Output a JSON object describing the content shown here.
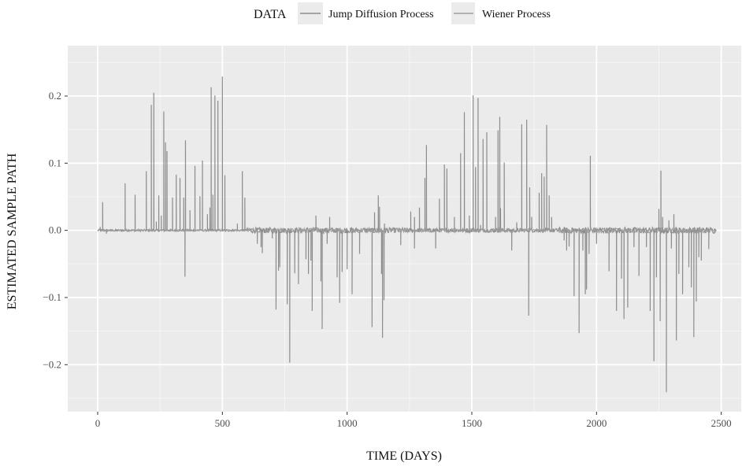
{
  "chart_data": {
    "type": "line",
    "xlabel": "TIME (DAYS)",
    "ylabel": "ESTIMATED SAMPLE PATH",
    "xlim": [
      -120,
      2580
    ],
    "ylim": [
      -0.27,
      0.275
    ],
    "xticks": [
      0,
      500,
      1000,
      1500,
      2000,
      2500
    ],
    "xtick_labels": [
      "0",
      "500",
      "1000",
      "1500",
      "2000",
      "2500"
    ],
    "yticks": [
      -0.2,
      -0.1,
      0.0,
      0.1,
      0.2
    ],
    "ytick_labels": [
      "−0.2",
      "−0.1",
      "0.0",
      "0.1",
      "0.2"
    ],
    "grid": true,
    "legend": {
      "title": "DATA",
      "position": "top",
      "entries": [
        "Jump Diffusion Process",
        "Wiener Process"
      ]
    },
    "series_colors": [
      "#8c8c8c",
      "#9e9e9e"
    ],
    "spikes": [
      [
        10,
        0.005
      ],
      [
        20,
        0.042
      ],
      [
        35,
        -0.005
      ],
      [
        110,
        0.07
      ],
      [
        150,
        0.053
      ],
      [
        195,
        0.088
      ],
      [
        215,
        0.187
      ],
      [
        225,
        0.205
      ],
      [
        235,
        0.013
      ],
      [
        245,
        0.052
      ],
      [
        255,
        0.022
      ],
      [
        265,
        0.177
      ],
      [
        272,
        0.131
      ],
      [
        278,
        0.118
      ],
      [
        300,
        0.049
      ],
      [
        315,
        0.083
      ],
      [
        330,
        0.078
      ],
      [
        345,
        0.049
      ],
      [
        350,
        -0.069
      ],
      [
        352,
        0.134
      ],
      [
        370,
        0.03
      ],
      [
        390,
        0.096
      ],
      [
        410,
        0.051
      ],
      [
        420,
        0.104
      ],
      [
        440,
        0.024
      ],
      [
        450,
        0.034
      ],
      [
        455,
        0.213
      ],
      [
        462,
        0.053
      ],
      [
        470,
        0.201
      ],
      [
        482,
        0.193
      ],
      [
        500,
        0.229
      ],
      [
        510,
        0.082
      ],
      [
        560,
        0.01
      ],
      [
        580,
        0.088
      ],
      [
        590,
        0.049
      ],
      [
        640,
        -0.02
      ],
      [
        655,
        -0.025
      ],
      [
        660,
        -0.034
      ],
      [
        700,
        -0.012
      ],
      [
        715,
        -0.118
      ],
      [
        725,
        -0.06
      ],
      [
        730,
        -0.055
      ],
      [
        760,
        -0.11
      ],
      [
        770,
        -0.197
      ],
      [
        790,
        -0.064
      ],
      [
        805,
        -0.08
      ],
      [
        835,
        -0.043
      ],
      [
        845,
        -0.065
      ],
      [
        855,
        -0.045
      ],
      [
        860,
        -0.12
      ],
      [
        875,
        0.022
      ],
      [
        895,
        -0.076
      ],
      [
        900,
        -0.147
      ],
      [
        920,
        -0.02
      ],
      [
        930,
        0.02
      ],
      [
        960,
        -0.07
      ],
      [
        970,
        -0.108
      ],
      [
        980,
        -0.062
      ],
      [
        1000,
        -0.058
      ],
      [
        1020,
        -0.095
      ],
      [
        1050,
        -0.035
      ],
      [
        1100,
        -0.144
      ],
      [
        1110,
        0.027
      ],
      [
        1125,
        0.052
      ],
      [
        1130,
        0.035
      ],
      [
        1138,
        -0.065
      ],
      [
        1142,
        -0.16
      ],
      [
        1148,
        -0.104
      ],
      [
        1150,
        0.01
      ],
      [
        1215,
        -0.022
      ],
      [
        1255,
        0.028
      ],
      [
        1270,
        0.02
      ],
      [
        1270,
        -0.027
      ],
      [
        1290,
        0.034
      ],
      [
        1312,
        0.078
      ],
      [
        1318,
        0.127
      ],
      [
        1335,
        0.002
      ],
      [
        1355,
        -0.027
      ],
      [
        1370,
        0.047
      ],
      [
        1390,
        0.098
      ],
      [
        1400,
        0.092
      ],
      [
        1430,
        0.02
      ],
      [
        1455,
        0.115
      ],
      [
        1470,
        0.176
      ],
      [
        1478,
        0.003
      ],
      [
        1490,
        0.022
      ],
      [
        1505,
        0.201
      ],
      [
        1515,
        0.094
      ],
      [
        1525,
        0.197
      ],
      [
        1535,
        0.008
      ],
      [
        1545,
        0.136
      ],
      [
        1560,
        0.146
      ],
      [
        1595,
        0.02
      ],
      [
        1605,
        0.149
      ],
      [
        1612,
        0.169
      ],
      [
        1615,
        0.033
      ],
      [
        1630,
        0.101
      ],
      [
        1660,
        -0.03
      ],
      [
        1680,
        0.012
      ],
      [
        1700,
        0.158
      ],
      [
        1720,
        0.165
      ],
      [
        1728,
        -0.127
      ],
      [
        1732,
        0.064
      ],
      [
        1740,
        0.02
      ],
      [
        1770,
        0.056
      ],
      [
        1780,
        0.085
      ],
      [
        1790,
        0.08
      ],
      [
        1800,
        0.157
      ],
      [
        1810,
        0.052
      ],
      [
        1820,
        0.02
      ],
      [
        1870,
        -0.015
      ],
      [
        1880,
        -0.03
      ],
      [
        1890,
        -0.024
      ],
      [
        1910,
        -0.098
      ],
      [
        1930,
        -0.153
      ],
      [
        1945,
        -0.03
      ],
      [
        1955,
        -0.095
      ],
      [
        1960,
        -0.088
      ],
      [
        1970,
        -0.035
      ],
      [
        1975,
        0.111
      ],
      [
        2000,
        -0.02
      ],
      [
        2050,
        -0.061
      ],
      [
        2080,
        -0.12
      ],
      [
        2100,
        -0.072
      ],
      [
        2110,
        -0.132
      ],
      [
        2125,
        -0.115
      ],
      [
        2150,
        -0.025
      ],
      [
        2170,
        -0.068
      ],
      [
        2200,
        -0.025
      ],
      [
        2215,
        -0.12
      ],
      [
        2230,
        -0.195
      ],
      [
        2240,
        -0.07
      ],
      [
        2250,
        0.032
      ],
      [
        2255,
        -0.135
      ],
      [
        2258,
        0.089
      ],
      [
        2265,
        0.02
      ],
      [
        2280,
        -0.241
      ],
      [
        2290,
        0.015
      ],
      [
        2300,
        -0.027
      ],
      [
        2310,
        0.024
      ],
      [
        2320,
        -0.164
      ],
      [
        2330,
        -0.065
      ],
      [
        2345,
        -0.095
      ],
      [
        2370,
        -0.055
      ],
      [
        2380,
        -0.085
      ],
      [
        2390,
        -0.159
      ],
      [
        2400,
        -0.106
      ],
      [
        2410,
        -0.04
      ],
      [
        2420,
        -0.045
      ],
      [
        2450,
        -0.028
      ]
    ],
    "noise_bands": [
      [
        0,
        600,
        0.0015
      ],
      [
        600,
        1250,
        0.004
      ],
      [
        1250,
        1850,
        0.003
      ],
      [
        1850,
        2480,
        0.0045
      ]
    ],
    "x_extent": [
      0,
      2480
    ]
  }
}
